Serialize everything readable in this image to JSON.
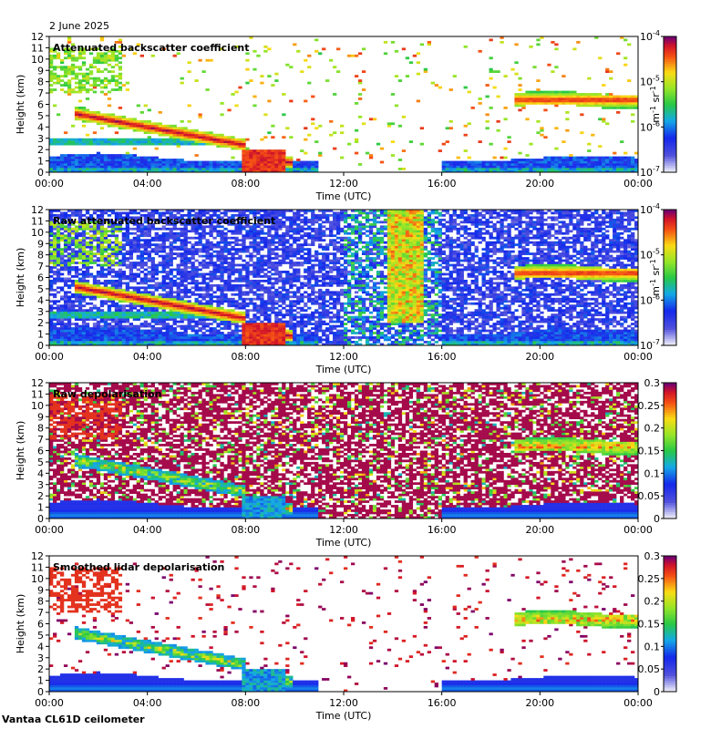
{
  "date": "2 June 2025",
  "footer": "Vantaa CL61D ceilometer",
  "chart_data": [
    {
      "type": "heatmap",
      "title": "Attenuated backscatter coefficient",
      "xlabel": "Time (UTC)",
      "ylabel": "Height (km)",
      "x_ticks": [
        "00:00",
        "04:00",
        "08:00",
        "12:00",
        "16:00",
        "20:00",
        "00:00"
      ],
      "y_ticks": [
        "0",
        "1",
        "2",
        "3",
        "4",
        "5",
        "6",
        "7",
        "8",
        "9",
        "10",
        "11",
        "12"
      ],
      "ylim": [
        0,
        12
      ],
      "colorbar": {
        "scale": "log",
        "ticks": [
          "10",
          "10",
          "10",
          "10"
        ],
        "exponents": [
          "-4",
          "-5",
          "-6",
          "-7"
        ],
        "unit": "m",
        "unit_exp1": "-1",
        "unit_mid": "sr",
        "unit_exp2": "-1"
      }
    },
    {
      "type": "heatmap",
      "title": "Raw attenuated backscatter coefficient",
      "xlabel": "Time (UTC)",
      "ylabel": "Height (km)",
      "x_ticks": [
        "00:00",
        "04:00",
        "08:00",
        "12:00",
        "16:00",
        "20:00",
        "00:00"
      ],
      "y_ticks": [
        "0",
        "1",
        "2",
        "3",
        "4",
        "5",
        "6",
        "7",
        "8",
        "9",
        "10",
        "11",
        "12"
      ],
      "ylim": [
        0,
        12
      ],
      "colorbar": {
        "scale": "log",
        "ticks": [
          "10",
          "10",
          "10",
          "10"
        ],
        "exponents": [
          "-4",
          "-5",
          "-6",
          "-7"
        ],
        "unit": "m",
        "unit_exp1": "-1",
        "unit_mid": "sr",
        "unit_exp2": "-1"
      }
    },
    {
      "type": "heatmap",
      "title": "Raw depolarisation",
      "xlabel": "Time (UTC)",
      "ylabel": "Height (km)",
      "x_ticks": [
        "00:00",
        "04:00",
        "08:00",
        "12:00",
        "16:00",
        "20:00",
        "00:00"
      ],
      "y_ticks": [
        "0",
        "1",
        "2",
        "3",
        "4",
        "5",
        "6",
        "7",
        "8",
        "9",
        "10",
        "11",
        "12"
      ],
      "ylim": [
        0,
        12
      ],
      "colorbar": {
        "scale": "linear",
        "ticks": [
          "0.3",
          "0.25",
          "0.2",
          "0.15",
          "0.1",
          "0.05",
          "0"
        ],
        "range": [
          0,
          0.3
        ]
      }
    },
    {
      "type": "heatmap",
      "title": "Smoothed lidar depolarisation",
      "xlabel": "Time (UTC)",
      "ylabel": "Height (km)",
      "x_ticks": [
        "00:00",
        "04:00",
        "08:00",
        "12:00",
        "16:00",
        "20:00",
        "00:00"
      ],
      "y_ticks": [
        "0",
        "1",
        "2",
        "3",
        "4",
        "5",
        "6",
        "7",
        "8",
        "9",
        "10",
        "11",
        "12"
      ],
      "ylim": [
        0,
        12
      ],
      "colorbar": {
        "scale": "linear",
        "ticks": [
          "0.3",
          "0.25",
          "0.2",
          "0.15",
          "0.1",
          "0.05",
          "0"
        ],
        "range": [
          0,
          0.3
        ]
      }
    }
  ]
}
